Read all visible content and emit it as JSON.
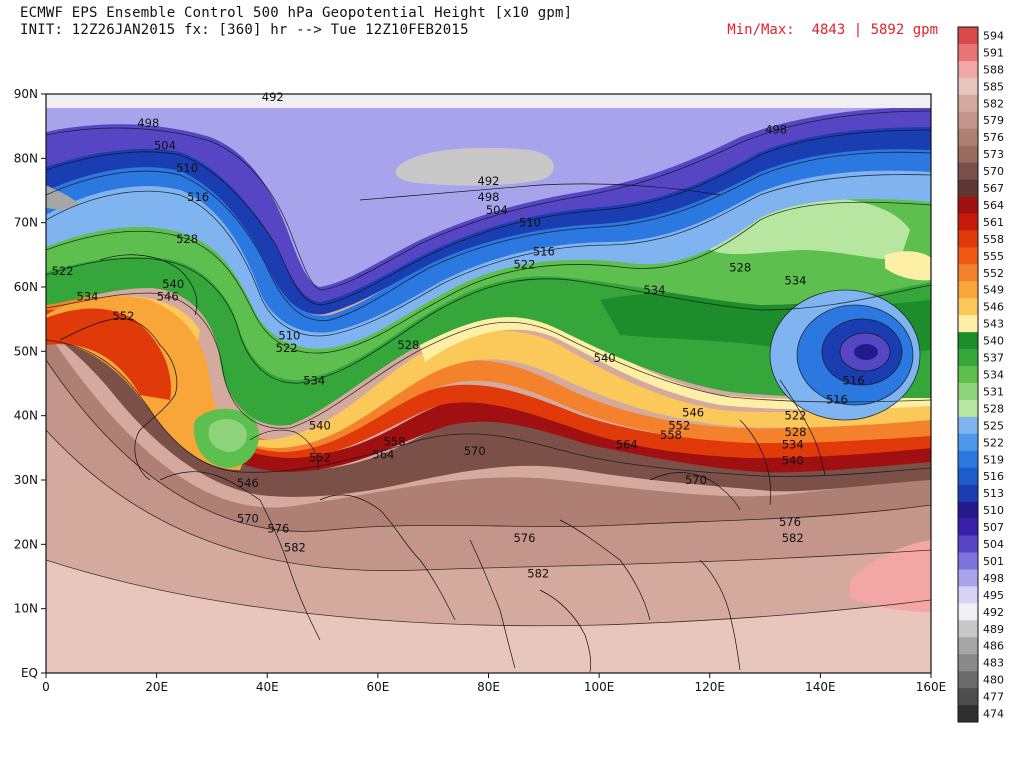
{
  "header": {
    "title_line1": "ECMWF EPS Ensemble Control 500 hPa Geopotential Height [x10 gpm]",
    "title_line2": "INIT: 12Z26JAN2015 fx: [360] hr --> Tue 12Z10FEB2015",
    "minmax": "Min/Max:  4843 | 5892 gpm"
  },
  "axes": {
    "y_labels": [
      "90N",
      "80N",
      "70N",
      "60N",
      "50N",
      "40N",
      "30N",
      "20N",
      "10N",
      "EQ"
    ],
    "x_labels": [
      "0",
      "20E",
      "40E",
      "60E",
      "80E",
      "100E",
      "120E",
      "140E",
      "160E"
    ]
  },
  "colorbar": {
    "levels": [
      594,
      591,
      588,
      585,
      582,
      579,
      576,
      573,
      570,
      567,
      564,
      561,
      558,
      555,
      552,
      549,
      546,
      543,
      540,
      537,
      534,
      531,
      528,
      525,
      522,
      519,
      516,
      513,
      510,
      507,
      504,
      501,
      498,
      495,
      492,
      489,
      486,
      483,
      480,
      477,
      474
    ],
    "colors": [
      "#d84a4a",
      "#e87474",
      "#f3a6a6",
      "#e9c6bd",
      "#d5aa9e",
      "#c4958a",
      "#af7f73",
      "#9a6a5f",
      "#7a5049",
      "#5e3632",
      "#a01010",
      "#c81a0a",
      "#e03a0a",
      "#f05a14",
      "#f4822c",
      "#f8a53a",
      "#fbc85a",
      "#fdf0a6",
      "#1d8c2a",
      "#34a63a",
      "#5cbf4e",
      "#8ed47a",
      "#b6e6a0",
      "#7fb4f0",
      "#4e98ec",
      "#2a78e0",
      "#1e5ccc",
      "#1a3eb2",
      "#241a8c",
      "#3820a8",
      "#5646c4",
      "#7a74dc",
      "#a8a4ec",
      "#d6d4f6",
      "#f0f0f4",
      "#c8c8c8",
      "#a6a6a6",
      "#8a8a8a",
      "#6c6c6c",
      "#4e4e4e",
      "#303030"
    ]
  },
  "contour_labels": [
    {
      "text": "492",
      "lon": 41,
      "lat": 89.5
    },
    {
      "text": "498",
      "lon": 18.5,
      "lat": 85.5
    },
    {
      "text": "498",
      "lon": 132,
      "lat": 84.5
    },
    {
      "text": "504",
      "lon": 21.5,
      "lat": 82
    },
    {
      "text": "510",
      "lon": 25.5,
      "lat": 78.5
    },
    {
      "text": "516",
      "lon": 27.5,
      "lat": 74
    },
    {
      "text": "492",
      "lon": 80,
      "lat": 76.5
    },
    {
      "text": "498",
      "lon": 80,
      "lat": 74
    },
    {
      "text": "504",
      "lon": 81.5,
      "lat": 72
    },
    {
      "text": "510",
      "lon": 87.5,
      "lat": 70
    },
    {
      "text": "516",
      "lon": 90,
      "lat": 65.5
    },
    {
      "text": "522",
      "lon": 86.5,
      "lat": 63.5
    },
    {
      "text": "528",
      "lon": 25.5,
      "lat": 67.5
    },
    {
      "text": "528",
      "lon": 125.5,
      "lat": 63
    },
    {
      "text": "534",
      "lon": 110,
      "lat": 59.5
    },
    {
      "text": "534",
      "lon": 135.5,
      "lat": 61
    },
    {
      "text": "522",
      "lon": 3,
      "lat": 62.5
    },
    {
      "text": "534",
      "lon": 7.5,
      "lat": 58.5
    },
    {
      "text": "540",
      "lon": 23,
      "lat": 60.5
    },
    {
      "text": "546",
      "lon": 22,
      "lat": 58.5
    },
    {
      "text": "552",
      "lon": 14,
      "lat": 55.5
    },
    {
      "text": "510",
      "lon": 44,
      "lat": 52.5
    },
    {
      "text": "522",
      "lon": 43.5,
      "lat": 50.5
    },
    {
      "text": "528",
      "lon": 65.5,
      "lat": 51
    },
    {
      "text": "534",
      "lon": 48.5,
      "lat": 45.5
    },
    {
      "text": "540",
      "lon": 101,
      "lat": 49
    },
    {
      "text": "540",
      "lon": 49.5,
      "lat": 38.5
    },
    {
      "text": "546",
      "lon": 117,
      "lat": 40.5
    },
    {
      "text": "552",
      "lon": 114.5,
      "lat": 38.5
    },
    {
      "text": "558",
      "lon": 113,
      "lat": 37
    },
    {
      "text": "558",
      "lon": 63,
      "lat": 36
    },
    {
      "text": "564",
      "lon": 61,
      "lat": 34
    },
    {
      "text": "552",
      "lon": 49.5,
      "lat": 33.5
    },
    {
      "text": "570",
      "lon": 77.5,
      "lat": 34.5
    },
    {
      "text": "564",
      "lon": 105,
      "lat": 35.5
    },
    {
      "text": "570",
      "lon": 117.5,
      "lat": 30
    },
    {
      "text": "546",
      "lon": 36.5,
      "lat": 29.5
    },
    {
      "text": "570",
      "lon": 36.5,
      "lat": 24
    },
    {
      "text": "576",
      "lon": 42,
      "lat": 22.5
    },
    {
      "text": "582",
      "lon": 45,
      "lat": 19.5
    },
    {
      "text": "576",
      "lon": 86.5,
      "lat": 21
    },
    {
      "text": "582",
      "lon": 89,
      "lat": 15.5
    },
    {
      "text": "576",
      "lon": 134.5,
      "lat": 23.5
    },
    {
      "text": "582",
      "lon": 135,
      "lat": 21
    },
    {
      "text": "522",
      "lon": 135.5,
      "lat": 40
    },
    {
      "text": "528",
      "lon": 135.5,
      "lat": 37.5
    },
    {
      "text": "534",
      "lon": 135,
      "lat": 35.5
    },
    {
      "text": "540",
      "lon": 135,
      "lat": 33
    },
    {
      "text": "516",
      "lon": 143,
      "lat": 42.5
    },
    {
      "text": "516",
      "lon": 146,
      "lat": 45.5
    }
  ]
}
